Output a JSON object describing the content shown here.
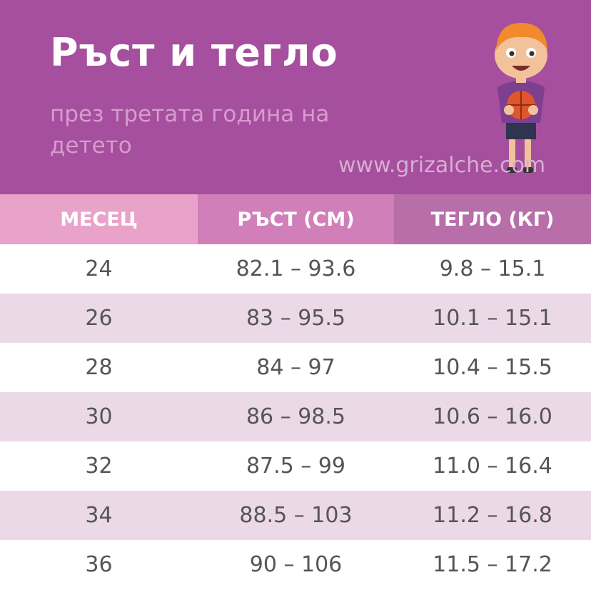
{
  "header": {
    "title": "Ръст и тегло",
    "subtitle": "през третата година на детето",
    "website": "www.grizalche.com"
  },
  "table": {
    "columns": [
      "МЕСЕЦ",
      "РЪСТ (СМ)",
      "ТЕГЛО (КГ)"
    ],
    "rows": [
      [
        "24",
        "82.1 – 93.6",
        "9.8 – 15.1"
      ],
      [
        "26",
        "83 – 95.5",
        "10.1 – 15.1"
      ],
      [
        "28",
        "84 – 97",
        "10.4 – 15.5"
      ],
      [
        "30",
        "86 – 98.5",
        "10.6 – 16.0"
      ],
      [
        "32",
        "87.5 – 99",
        "11.0 – 16.4"
      ],
      [
        "34",
        "88.5 – 103",
        "11.2 – 16.8"
      ],
      [
        "36",
        "90 – 106",
        "11.5 – 17.2"
      ]
    ]
  }
}
